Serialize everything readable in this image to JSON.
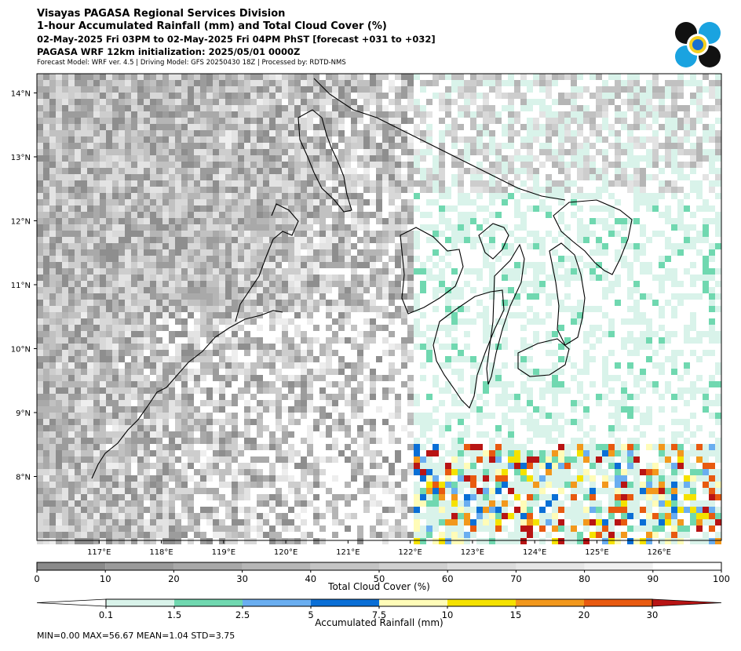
{
  "header": {
    "line1": "Visayas PAGASA Regional Services Division",
    "line2": "1-hour Accumulated Rainfall (mm) and Total Cloud Cover (%)",
    "line3": "02-May-2025 Fri 03PM to 02-May-2025 Fri 04PM PhST [forecast +031 to +032]",
    "line4": "PAGASA WRF 12km initialization: 2025/05/01 0000Z",
    "line5": "Forecast Model: WRF ver. 4.5 | Driving Model: GFS 20250430 18Z | Processed by: RDTD-NMS"
  },
  "map": {
    "lon_range": [
      116.0,
      127.0
    ],
    "lat_range": [
      7.0,
      14.3
    ],
    "lon_ticks": [
      "117°E",
      "118°E",
      "119°E",
      "120°E",
      "121°E",
      "122°E",
      "123°E",
      "124°E",
      "125°E",
      "126°E"
    ],
    "lat_ticks": [
      "14°N",
      "13°N",
      "12°N",
      "11°N",
      "10°N",
      "9°N",
      "8°N"
    ]
  },
  "cloud_colorbar": {
    "title": "Total Cloud Cover (%)",
    "ticks": [
      "0",
      "10",
      "20",
      "30",
      "40",
      "50",
      "60",
      "70",
      "80",
      "90",
      "100"
    ],
    "colors": [
      "#8a8a8a",
      "#9a9a9a",
      "#a8a8a8",
      "#b6b6b6",
      "#c4c4c4",
      "#d0d0d0",
      "#dcdcdc",
      "#e6e6e6",
      "#f0f0f0",
      "#ffffff"
    ]
  },
  "rain_colorbar": {
    "title": "Accumulated Rainfall (mm)",
    "ticks": [
      "0.1",
      "1.5",
      "2.5",
      "5",
      "7.5",
      "10",
      "15",
      "20",
      "30"
    ],
    "colors": [
      "#ffffff",
      "#d9f3ea",
      "#70d8b0",
      "#6aaef0",
      "#0a6fd6",
      "#fffcb8",
      "#f5e200",
      "#f2981c",
      "#e85a10",
      "#b81414"
    ]
  },
  "stats": {
    "text": "MIN=0.00   MAX=56.67   MEAN=1.04   STD=3.75"
  }
}
